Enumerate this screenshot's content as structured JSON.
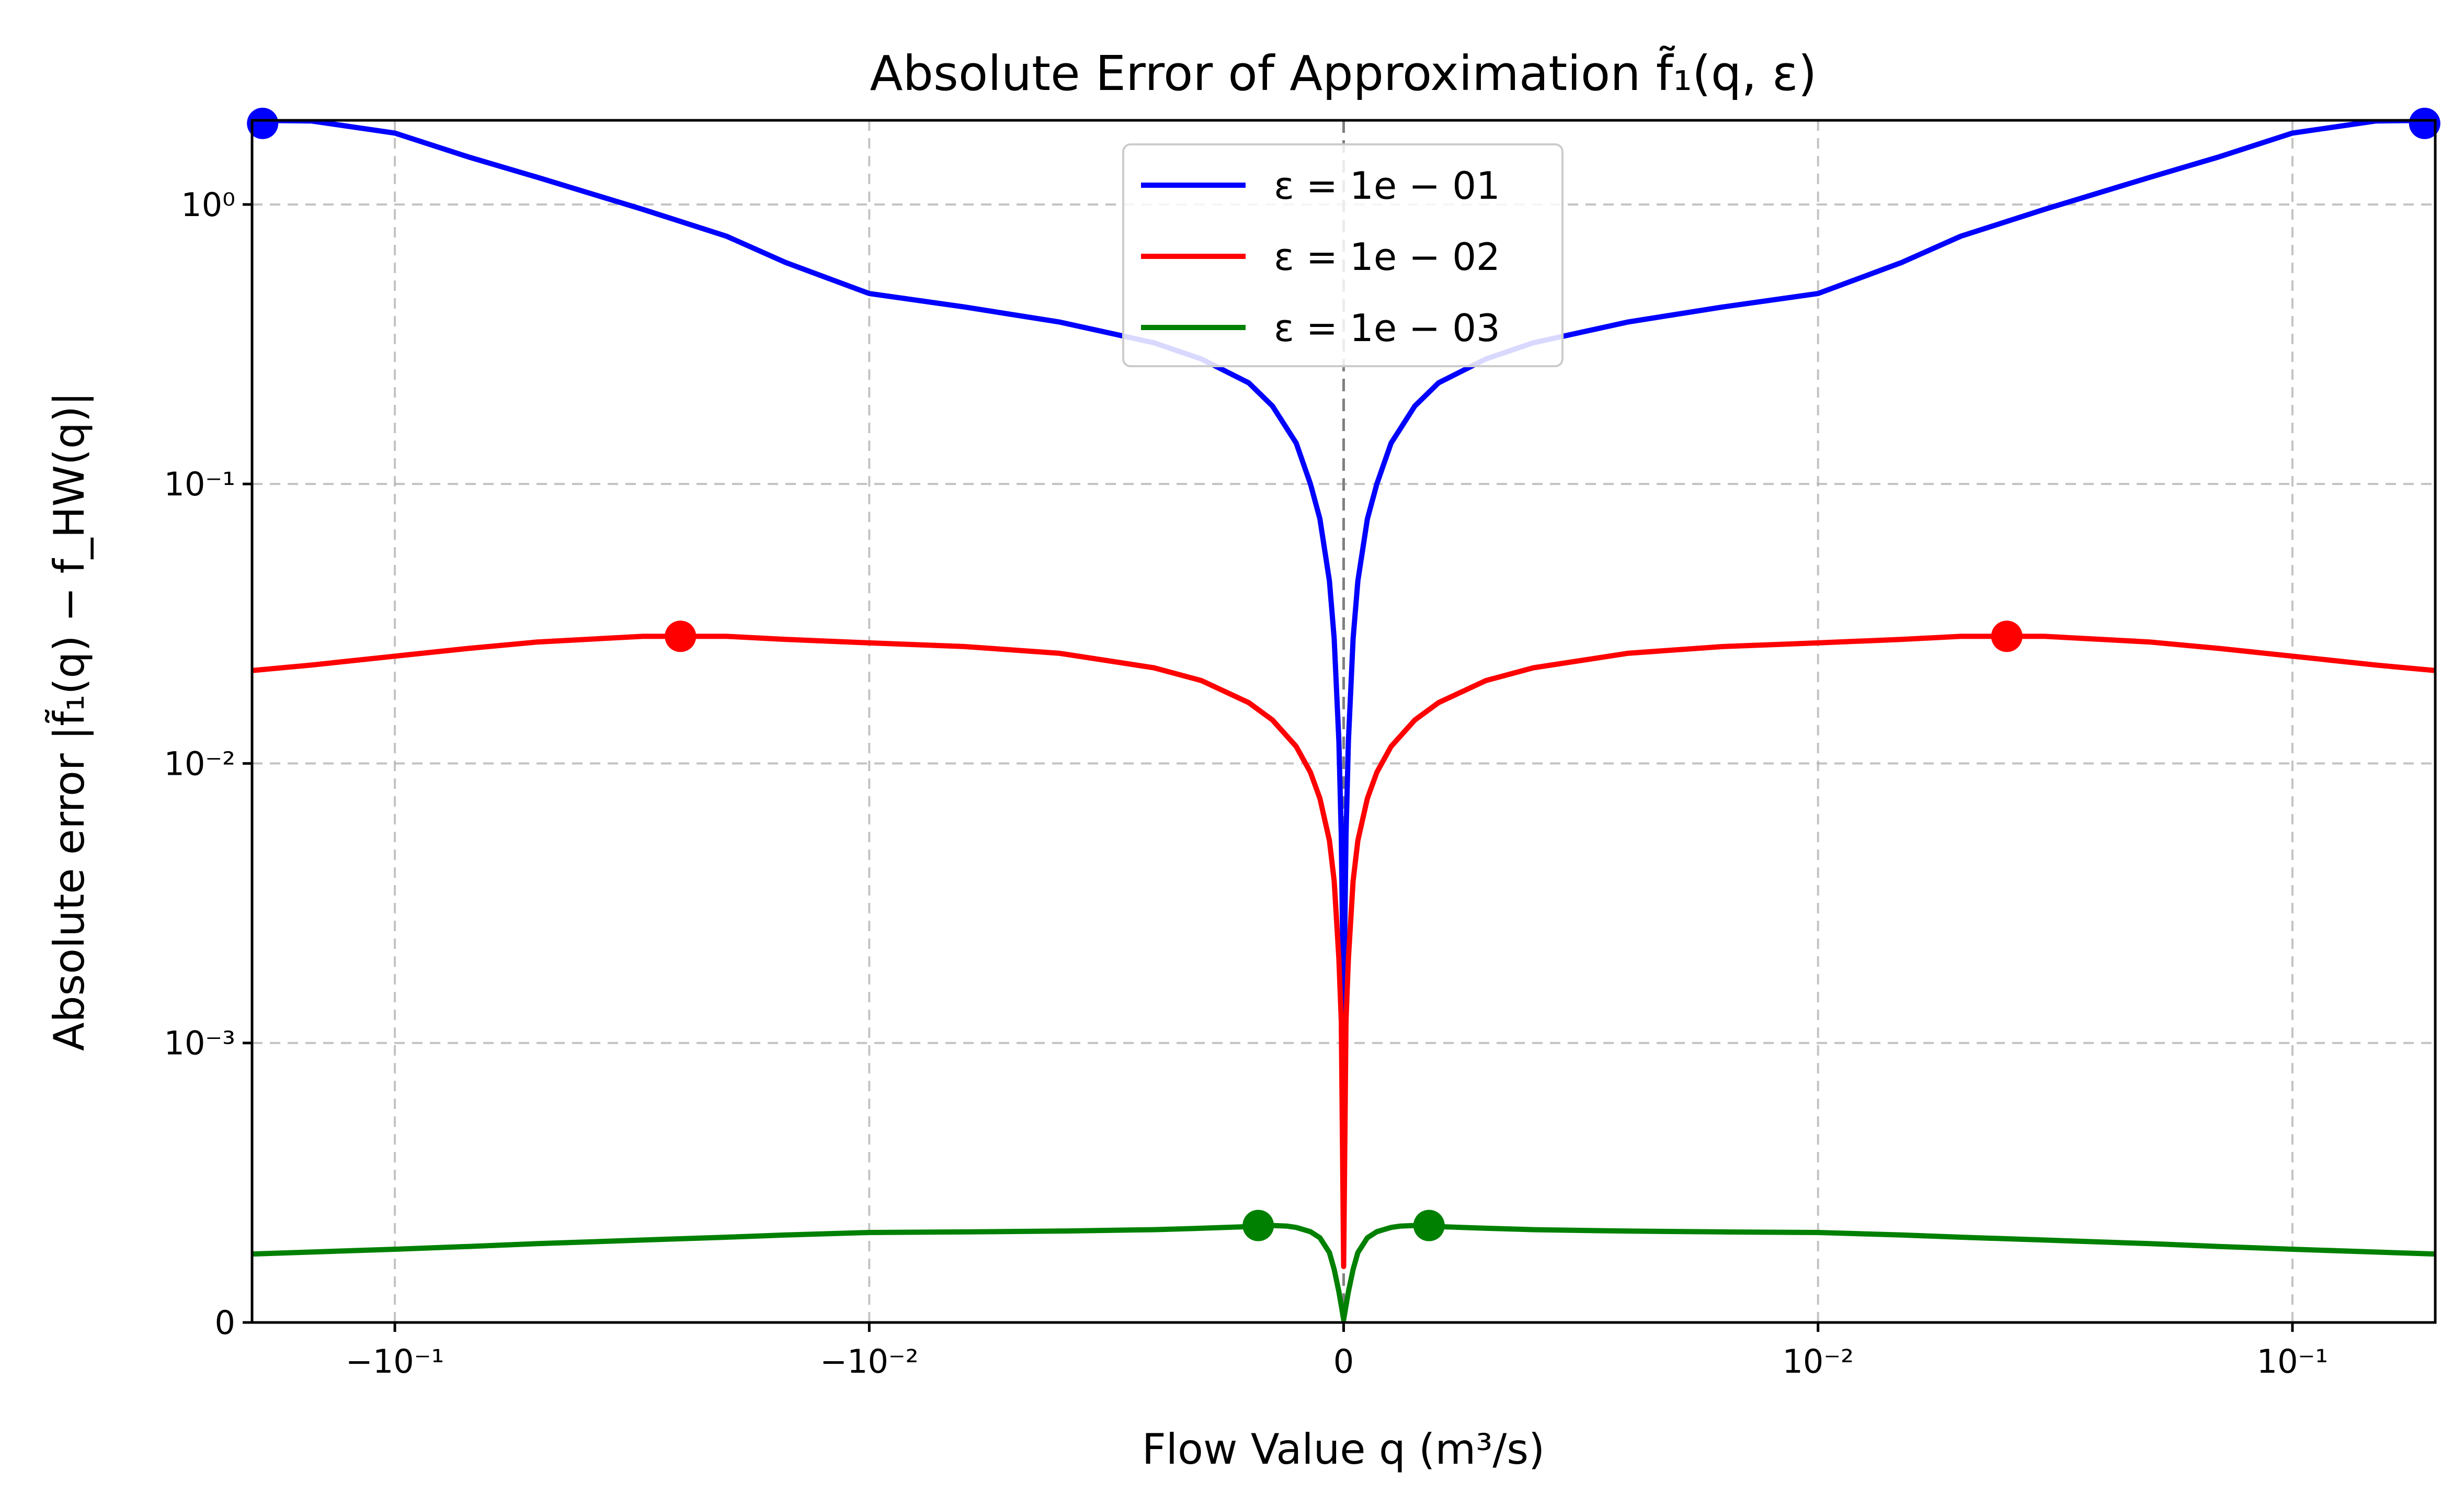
{
  "chart_data": {
    "type": "line",
    "title": "Absolute Error of Approximation f̃₁(q, ε)",
    "xlabel": "Flow Value q (m³/s)",
    "ylabel": "Absolute error |f̃₁(q) − f_HW(q)|",
    "xscale": "symlog",
    "xscale_linthresh": 0.01,
    "xlim": [
      -0.2,
      0.2
    ],
    "yscale": "symlog",
    "yscale_linthresh": 0.001,
    "ylim": [
      0,
      2.0
    ],
    "grid": true,
    "legend_position": "upper center",
    "x_ticks": [
      {
        "value": -0.1,
        "label": "−10⁻¹"
      },
      {
        "value": -0.01,
        "label": "−10⁻²"
      },
      {
        "value": 0,
        "label": "0"
      },
      {
        "value": 0.01,
        "label": "10⁻²"
      },
      {
        "value": 0.1,
        "label": "10⁻¹"
      }
    ],
    "y_ticks": [
      {
        "value": 0,
        "label": "0"
      },
      {
        "value": 0.001,
        "label": "10⁻³"
      },
      {
        "value": 0.01,
        "label": "10⁻²"
      },
      {
        "value": 0.1,
        "label": "10⁻¹"
      },
      {
        "value": 1,
        "label": "10⁰"
      }
    ],
    "reference_line": {
      "x": 0
    },
    "series": [
      {
        "name": "ε = 1e − 01",
        "color": "#0000ff",
        "x": [
          -0.2,
          -0.15,
          -0.1,
          -0.07,
          -0.05,
          -0.03,
          -0.02,
          -0.015,
          -0.01,
          -0.008,
          -0.006,
          -0.004,
          -0.003,
          -0.002,
          -0.0015,
          -0.001,
          -0.0007,
          -0.0005,
          -0.0003,
          -0.0002,
          -0.0001,
          -5e-05,
          0,
          5e-05,
          0.0001,
          0.0002,
          0.0003,
          0.0005,
          0.0007,
          0.001,
          0.0015,
          0.002,
          0.003,
          0.004,
          0.006,
          0.008,
          0.01,
          0.015,
          0.02,
          0.03,
          0.05,
          0.07,
          0.1,
          0.15,
          0.2
        ],
        "y": [
          2.0,
          1.99,
          1.8,
          1.48,
          1.25,
          0.96,
          0.77,
          0.62,
          0.48,
          0.43,
          0.38,
          0.32,
          0.28,
          0.23,
          0.19,
          0.14,
          0.1,
          0.075,
          0.045,
          0.028,
          0.012,
          0.0055,
          0.0012,
          0.0055,
          0.012,
          0.028,
          0.045,
          0.075,
          0.1,
          0.14,
          0.19,
          0.23,
          0.28,
          0.32,
          0.38,
          0.43,
          0.48,
          0.62,
          0.77,
          0.96,
          1.25,
          1.48,
          1.8,
          1.99,
          2.0
        ],
        "markers": [
          {
            "x": -0.19,
            "y": 1.95
          },
          {
            "x": 0.19,
            "y": 1.95
          }
        ]
      },
      {
        "name": "ε = 1e − 02",
        "color": "#ff0000",
        "x": [
          -0.2,
          -0.15,
          -0.1,
          -0.07,
          -0.05,
          -0.03,
          -0.02,
          -0.015,
          -0.01,
          -0.008,
          -0.006,
          -0.004,
          -0.003,
          -0.002,
          -0.0015,
          -0.001,
          -0.0007,
          -0.0005,
          -0.0003,
          -0.0002,
          -0.0001,
          -5e-05,
          0,
          5e-05,
          0.0001,
          0.0002,
          0.0003,
          0.0005,
          0.0007,
          0.001,
          0.0015,
          0.002,
          0.003,
          0.004,
          0.006,
          0.008,
          0.01,
          0.015,
          0.02,
          0.03,
          0.05,
          0.07,
          0.1,
          0.15,
          0.2
        ],
        "y": [
          0.0215,
          0.0225,
          0.0242,
          0.0258,
          0.0272,
          0.0285,
          0.0285,
          0.0278,
          0.027,
          0.0262,
          0.0248,
          0.022,
          0.0198,
          0.0165,
          0.0143,
          0.0115,
          0.0093,
          0.0075,
          0.0053,
          0.0038,
          0.002,
          0.0012,
          0.0002,
          0.0012,
          0.002,
          0.0038,
          0.0053,
          0.0075,
          0.0093,
          0.0115,
          0.0143,
          0.0165,
          0.0198,
          0.022,
          0.0248,
          0.0262,
          0.027,
          0.0278,
          0.0285,
          0.0285,
          0.0272,
          0.0258,
          0.0242,
          0.0225,
          0.0215
        ],
        "markers": [
          {
            "x": -0.025,
            "y": 0.0285
          },
          {
            "x": 0.025,
            "y": 0.0285
          }
        ]
      },
      {
        "name": "ε = 1e − 03",
        "color": "#008000",
        "x": [
          -0.2,
          -0.15,
          -0.1,
          -0.07,
          -0.05,
          -0.03,
          -0.02,
          -0.015,
          -0.01,
          -0.008,
          -0.006,
          -0.004,
          -0.003,
          -0.002,
          -0.0017,
          -0.0015,
          -0.0012,
          -0.001,
          -0.0007,
          -0.0005,
          -0.0003,
          -0.0002,
          -0.0001,
          -5e-05,
          0,
          5e-05,
          0.0001,
          0.0002,
          0.0003,
          0.0005,
          0.0007,
          0.001,
          0.0012,
          0.0015,
          0.0017,
          0.002,
          0.003,
          0.004,
          0.006,
          0.008,
          0.01,
          0.015,
          0.02,
          0.03,
          0.05,
          0.07,
          0.1,
          0.15,
          0.2
        ],
        "y": [
          0.000245,
          0.000252,
          0.000262,
          0.000272,
          0.000282,
          0.000295,
          0.000305,
          0.000313,
          0.000322,
          0.000324,
          0.000327,
          0.000332,
          0.000337,
          0.000343,
          0.000346,
          0.000347,
          0.000345,
          0.00034,
          0.000325,
          0.000303,
          0.00025,
          0.00019,
          0.00011,
          6e-05,
          1e-05,
          6e-05,
          0.00011,
          0.00019,
          0.00025,
          0.000303,
          0.000325,
          0.00034,
          0.000345,
          0.000347,
          0.000346,
          0.000343,
          0.000337,
          0.000332,
          0.000327,
          0.000324,
          0.000322,
          0.000313,
          0.000305,
          0.000295,
          0.000282,
          0.000272,
          0.000262,
          0.000252,
          0.000245
        ],
        "markers": [
          {
            "x": -0.0018,
            "y": 0.000347
          },
          {
            "x": 0.0018,
            "y": 0.000347
          }
        ]
      }
    ]
  }
}
